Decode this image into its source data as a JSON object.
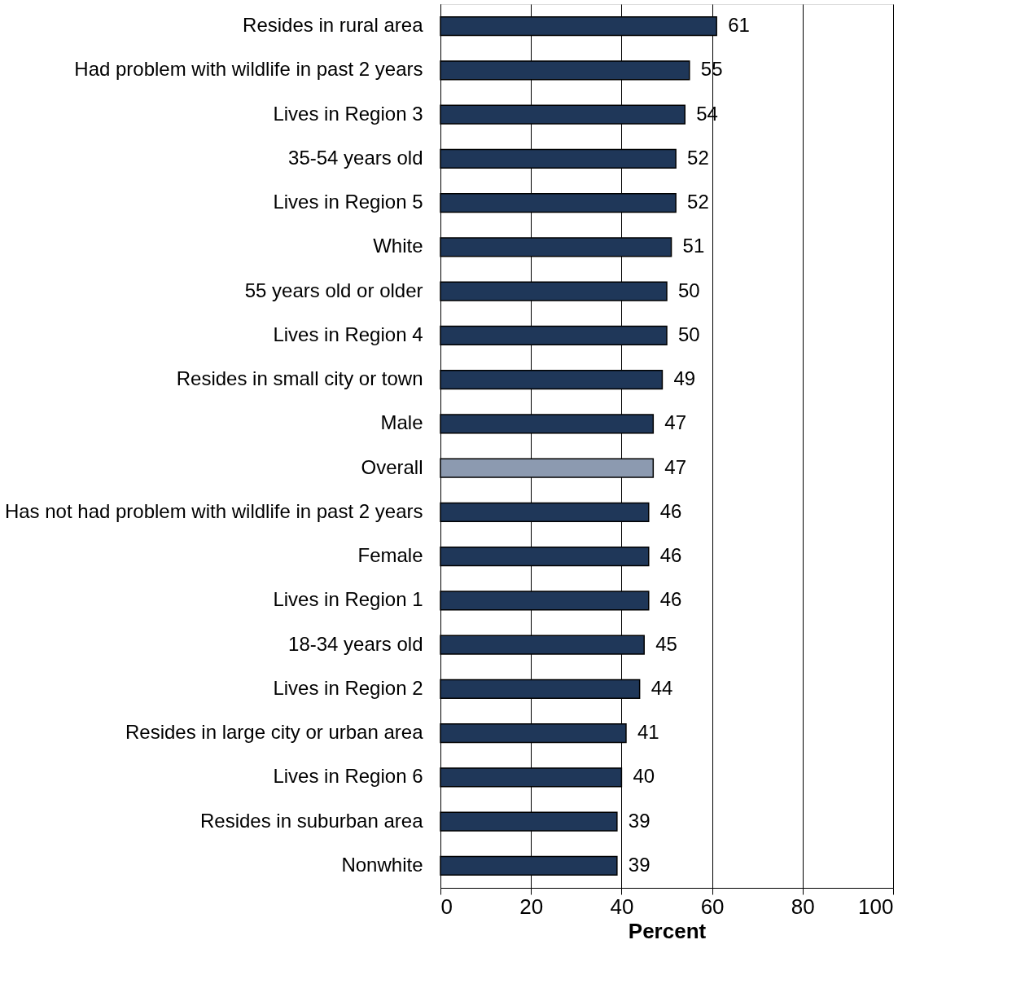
{
  "chart_data": {
    "type": "bar",
    "orientation": "horizontal",
    "xlabel": "Percent",
    "categories": [
      "Resides in rural area",
      "Had problem with wildlife in past 2 years",
      "Lives in Region 3",
      "35-54 years old",
      "Lives in Region 5",
      "White",
      "55 years old or older",
      "Lives in Region 4",
      "Resides in small city or town",
      "Male",
      "Overall",
      "Has not had problem with wildlife in past 2 years",
      "Female",
      "Lives in Region 1",
      "18-34 years old",
      "Lives in Region 2",
      "Resides in large city or urban area",
      "Lives in Region 6",
      "Resides in suburban area",
      "Nonwhite"
    ],
    "values": [
      61,
      55,
      54,
      52,
      52,
      51,
      50,
      50,
      49,
      47,
      47,
      46,
      46,
      46,
      45,
      44,
      41,
      40,
      39,
      39
    ],
    "colors": [
      "#1f3759",
      "#1f3759",
      "#1f3759",
      "#1f3759",
      "#1f3759",
      "#1f3759",
      "#1f3759",
      "#1f3759",
      "#1f3759",
      "#1f3759",
      "#8c9ab0",
      "#1f3759",
      "#1f3759",
      "#1f3759",
      "#1f3759",
      "#1f3759",
      "#1f3759",
      "#1f3759",
      "#1f3759",
      "#1f3759"
    ],
    "xlim": [
      0,
      100
    ],
    "xticks": [
      0,
      20,
      40,
      60,
      80,
      100
    ],
    "grid": "x",
    "data_labels": true
  }
}
